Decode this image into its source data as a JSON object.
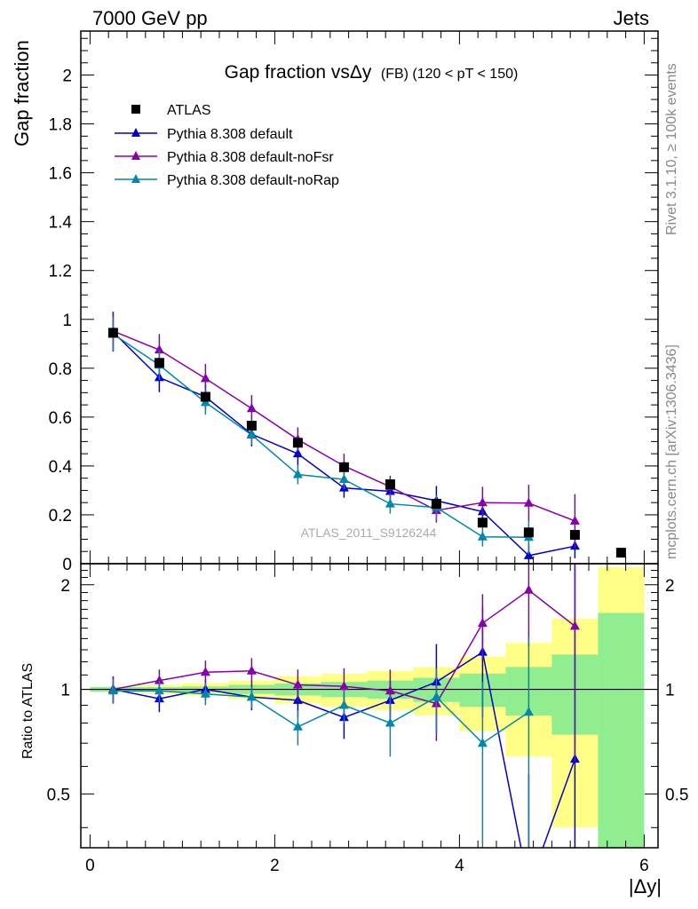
{
  "header": {
    "left": "7000 GeV pp",
    "right": "Jets"
  },
  "side_text": {
    "rivet": "Rivet 3.1.10, ≥ 100k events",
    "mcplots": "mcplots.cern.ch [arXiv:1306.3436]"
  },
  "title": {
    "main": "Gap fraction vsΔy",
    "sub": "(FB)  (120 < pT < 150)"
  },
  "watermark": "ATLAS_2011_S9126244",
  "legend": [
    {
      "name": "ATLAS",
      "color": "#000000",
      "marker": "square"
    },
    {
      "name": "Pythia 8.308 default",
      "color": "#0000cc",
      "marker": "triangle"
    },
    {
      "name": "Pythia 8.308 default-noFsr",
      "color": "#8800aa",
      "marker": "triangle"
    },
    {
      "name": "Pythia 8.308 default-noRap",
      "color": "#0088aa",
      "marker": "triangle"
    }
  ],
  "chart_data": [
    {
      "type": "scatter",
      "ylabel": "Gap fraction",
      "xlim": [
        -0.1,
        6.15
      ],
      "ylim": [
        0,
        2.18
      ],
      "y_ticks": [
        {
          "v": 0,
          "label": "0"
        },
        {
          "v": 0.2,
          "label": "0.2"
        },
        {
          "v": 0.4,
          "label": "0.4"
        },
        {
          "v": 0.6,
          "label": "0.6"
        },
        {
          "v": 0.8,
          "label": "0.8"
        },
        {
          "v": 1,
          "label": "1"
        },
        {
          "v": 1.2,
          "label": "1.2"
        },
        {
          "v": 1.4,
          "label": "1.4"
        },
        {
          "v": 1.6,
          "label": "1.6"
        },
        {
          "v": 1.8,
          "label": "1.8"
        },
        {
          "v": 2,
          "label": "2"
        }
      ],
      "x": [
        0.25,
        0.75,
        1.25,
        1.75,
        2.25,
        2.75,
        3.25,
        3.75,
        4.25,
        4.75,
        5.25,
        5.75
      ],
      "data": {
        "name": "ATLAS",
        "values": [
          0.945,
          0.822,
          0.683,
          0.565,
          0.495,
          0.395,
          0.325,
          0.245,
          0.168,
          0.128,
          0.118,
          0.045
        ]
      },
      "series": [
        {
          "name": "Pythia 8.308 default",
          "x": [
            0.25,
            0.75,
            1.25,
            1.75,
            2.25,
            2.75,
            3.25,
            3.75,
            4.25,
            4.75,
            5.25
          ],
          "values": [
            0.948,
            0.762,
            0.683,
            0.53,
            0.45,
            0.31,
            0.296,
            0.258,
            0.213,
            0.033,
            0.072
          ],
          "err": [
            0.08,
            0.06,
            0.05,
            0.05,
            0.05,
            0.04,
            0.04,
            0.06,
            0.06,
            0.05,
            0.05
          ]
        },
        {
          "name": "Pythia 8.308 default-noFsr",
          "x": [
            0.25,
            0.75,
            1.25,
            1.75,
            2.25,
            2.75,
            3.25,
            3.75,
            4.25,
            4.75,
            5.25
          ],
          "values": [
            0.952,
            0.875,
            0.758,
            0.635,
            0.508,
            0.4,
            0.315,
            0.218,
            0.25,
            0.248,
            0.175
          ],
          "err": [
            0.08,
            0.065,
            0.06,
            0.055,
            0.05,
            0.05,
            0.045,
            0.05,
            0.065,
            0.075,
            0.11
          ]
        },
        {
          "name": "Pythia 8.308 default-noRap",
          "x": [
            0.25,
            0.75,
            1.25,
            1.75,
            2.25,
            2.75,
            3.25,
            3.75,
            4.25,
            4.75,
            5.25
          ],
          "values": [
            0.94,
            0.813,
            0.66,
            0.527,
            0.365,
            0.345,
            0.245,
            0.23,
            0.11,
            0.108,
            null
          ],
          "err": [
            0.07,
            0.06,
            0.05,
            0.04,
            0.04,
            0.04,
            0.04,
            0.05,
            0.04,
            0.07,
            null
          ]
        }
      ]
    },
    {
      "type": "scatter",
      "xlabel": "|Δy|",
      "ylabel": "Ratio to ATLAS",
      "xlim": [
        -0.1,
        6.15
      ],
      "ylim": [
        0.35,
        2.3
      ],
      "x_ticks": [
        {
          "v": 0,
          "label": "0"
        },
        {
          "v": 2,
          "label": "2"
        },
        {
          "v": 4,
          "label": "4"
        },
        {
          "v": 6,
          "label": "6"
        }
      ],
      "y_ticks": [
        {
          "v": 0.5,
          "label": "0.5"
        },
        {
          "v": 1,
          "label": "1"
        },
        {
          "v": 2,
          "label": "2"
        }
      ],
      "bands": {
        "edges": [
          0,
          0.5,
          1,
          1.5,
          2,
          2.5,
          3,
          3.5,
          4,
          4.5,
          5,
          5.5,
          6
        ],
        "green": [
          0.015,
          0.015,
          0.02,
          0.03,
          0.04,
          0.05,
          0.06,
          0.08,
          0.11,
          0.16,
          0.26,
          0.66
        ],
        "yellow": [
          0.02,
          0.03,
          0.04,
          0.06,
          0.09,
          0.11,
          0.13,
          0.16,
          0.24,
          0.36,
          0.6,
          1.25
        ]
      },
      "series": [
        {
          "name": "Pythia 8.308 default",
          "x": [
            0.25,
            0.75,
            1.25,
            1.75,
            2.25,
            2.75,
            3.25,
            3.75,
            4.25,
            4.75,
            5.25
          ],
          "values": [
            1.0,
            0.94,
            1.0,
            0.95,
            0.93,
            0.83,
            0.93,
            1.05,
            1.28,
            0.27,
            0.63
          ],
          "err": [
            0.09,
            0.08,
            0.07,
            0.08,
            0.1,
            0.11,
            0.13,
            0.3,
            0.45,
            0.3,
            1.7
          ]
        },
        {
          "name": "Pythia 8.308 default-noFsr",
          "x": [
            0.25,
            0.75,
            1.25,
            1.75,
            2.25,
            2.75,
            3.25,
            3.75,
            4.25,
            4.75,
            5.25
          ],
          "values": [
            1.0,
            1.06,
            1.12,
            1.13,
            1.03,
            1.02,
            0.99,
            0.91,
            1.55,
            1.93,
            1.52
          ],
          "err": [
            0.09,
            0.08,
            0.09,
            0.1,
            0.11,
            0.13,
            0.15,
            0.2,
            0.33,
            0.6,
            0.9
          ]
        },
        {
          "name": "Pythia 8.308 default-noRap",
          "x": [
            0.25,
            0.75,
            1.25,
            1.75,
            2.25,
            2.75,
            3.25,
            3.75,
            4.25,
            4.75,
            5.25
          ],
          "values": [
            0.99,
            0.99,
            0.97,
            0.95,
            0.78,
            0.9,
            0.8,
            0.95,
            0.7,
            0.86,
            null
          ],
          "err": [
            0.08,
            0.07,
            0.07,
            0.07,
            0.09,
            0.1,
            0.16,
            0.2,
            0.35,
            0.55,
            null
          ]
        }
      ]
    }
  ]
}
